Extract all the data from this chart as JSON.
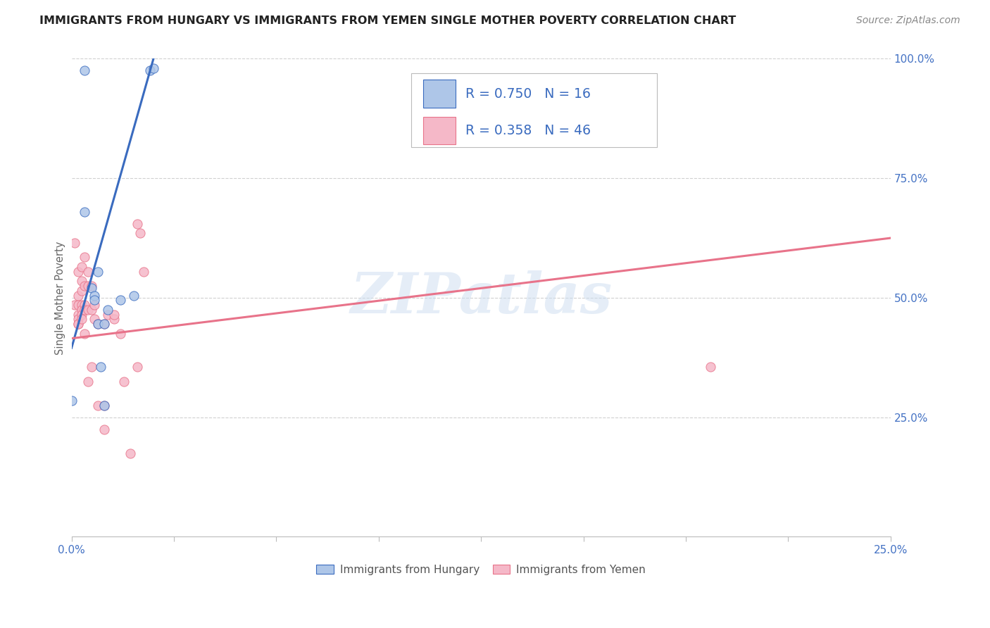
{
  "title": "IMMIGRANTS FROM HUNGARY VS IMMIGRANTS FROM YEMEN SINGLE MOTHER POVERTY CORRELATION CHART",
  "source": "Source: ZipAtlas.com",
  "ylabel": "Single Mother Poverty",
  "legend_bottom": [
    "Immigrants from Hungary",
    "Immigrants from Yemen"
  ],
  "hungary_R": 0.75,
  "hungary_N": 16,
  "yemen_R": 0.358,
  "yemen_N": 46,
  "hungary_color": "#aec6e8",
  "yemen_color": "#f5b8c8",
  "hungary_line_color": "#3a6bbf",
  "yemen_line_color": "#e8738a",
  "background_color": "#ffffff",
  "watermark": "ZIPatlas",
  "hungary_points": [
    [
      0.0,
      0.285
    ],
    [
      0.004,
      0.68
    ],
    [
      0.004,
      0.975
    ],
    [
      0.006,
      0.52
    ],
    [
      0.007,
      0.505
    ],
    [
      0.007,
      0.495
    ],
    [
      0.008,
      0.555
    ],
    [
      0.008,
      0.445
    ],
    [
      0.009,
      0.355
    ],
    [
      0.01,
      0.445
    ],
    [
      0.01,
      0.275
    ],
    [
      0.011,
      0.475
    ],
    [
      0.015,
      0.495
    ],
    [
      0.019,
      0.505
    ],
    [
      0.024,
      0.975
    ],
    [
      0.025,
      0.98
    ]
  ],
  "yemen_points": [
    [
      0.001,
      0.615
    ],
    [
      0.001,
      0.485
    ],
    [
      0.002,
      0.555
    ],
    [
      0.002,
      0.505
    ],
    [
      0.002,
      0.485
    ],
    [
      0.002,
      0.465
    ],
    [
      0.002,
      0.455
    ],
    [
      0.002,
      0.445
    ],
    [
      0.002,
      0.445
    ],
    [
      0.003,
      0.565
    ],
    [
      0.003,
      0.535
    ],
    [
      0.003,
      0.515
    ],
    [
      0.003,
      0.485
    ],
    [
      0.003,
      0.475
    ],
    [
      0.003,
      0.465
    ],
    [
      0.003,
      0.455
    ],
    [
      0.004,
      0.585
    ],
    [
      0.004,
      0.525
    ],
    [
      0.004,
      0.485
    ],
    [
      0.004,
      0.475
    ],
    [
      0.004,
      0.425
    ],
    [
      0.005,
      0.555
    ],
    [
      0.005,
      0.525
    ],
    [
      0.005,
      0.475
    ],
    [
      0.005,
      0.325
    ],
    [
      0.006,
      0.525
    ],
    [
      0.006,
      0.475
    ],
    [
      0.006,
      0.355
    ],
    [
      0.007,
      0.485
    ],
    [
      0.007,
      0.455
    ],
    [
      0.008,
      0.445
    ],
    [
      0.008,
      0.275
    ],
    [
      0.01,
      0.445
    ],
    [
      0.01,
      0.275
    ],
    [
      0.01,
      0.225
    ],
    [
      0.011,
      0.465
    ],
    [
      0.013,
      0.455
    ],
    [
      0.013,
      0.465
    ],
    [
      0.015,
      0.425
    ],
    [
      0.016,
      0.325
    ],
    [
      0.018,
      0.175
    ],
    [
      0.02,
      0.655
    ],
    [
      0.021,
      0.635
    ],
    [
      0.022,
      0.555
    ],
    [
      0.02,
      0.355
    ],
    [
      0.195,
      0.355
    ]
  ],
  "xlim": [
    0,
    0.25
  ],
  "ylim": [
    0,
    1.0
  ],
  "figsize": [
    14.06,
    8.92
  ],
  "dpi": 100,
  "hungary_line_x": [
    0.0,
    0.025
  ],
  "hungary_line_y": [
    0.395,
    1.0
  ],
  "yemen_line_x": [
    0.0,
    0.25
  ],
  "yemen_line_y": [
    0.415,
    0.625
  ]
}
